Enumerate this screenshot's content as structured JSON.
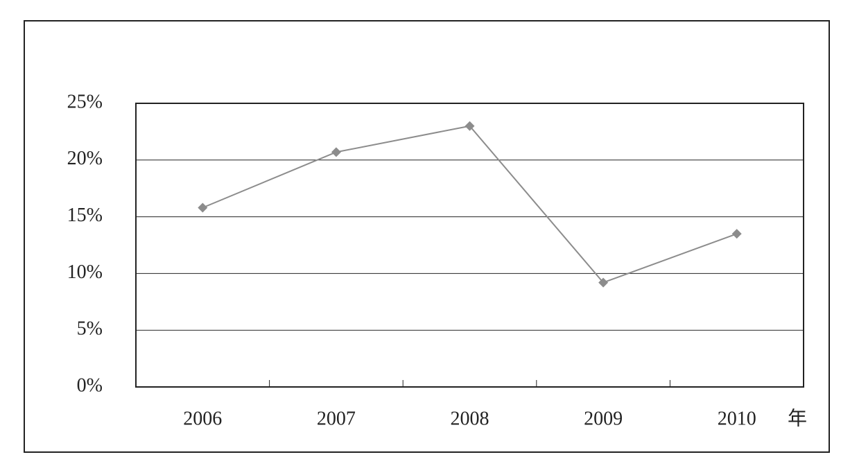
{
  "chart_data": {
    "type": "line",
    "x_label": "年",
    "categories": [
      "2006",
      "2007",
      "2008",
      "2009",
      "2010"
    ],
    "series": [
      {
        "color": "#8c8c8c",
        "values": [
          15.8,
          20.7,
          23.0,
          9.2,
          13.5
        ]
      }
    ],
    "ylim": [
      0,
      25
    ],
    "yticks": [
      {
        "value": 0,
        "label": "0%"
      },
      {
        "value": 5,
        "label": "5%"
      },
      {
        "value": 10,
        "label": "10%"
      },
      {
        "value": 15,
        "label": "15%"
      },
      {
        "value": 20,
        "label": "20%"
      },
      {
        "value": 25,
        "label": "25%"
      }
    ],
    "grid": true
  }
}
